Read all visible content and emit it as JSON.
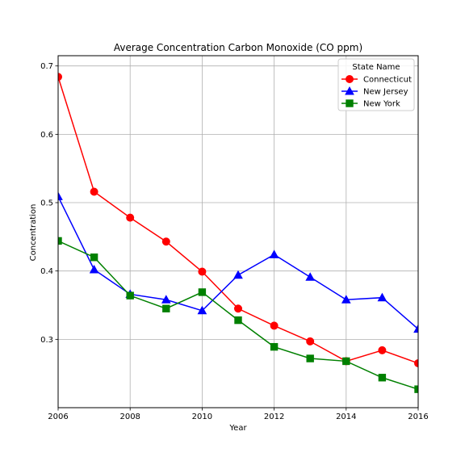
{
  "chart_data": {
    "type": "line",
    "title": "Average Concentration Carbon Monoxide (CO ppm)",
    "xlabel": "Year",
    "ylabel": "Concentration",
    "xlim": [
      2006,
      2016
    ],
    "ylim": [
      0.2,
      0.715
    ],
    "x_ticks": [
      "2006",
      "2008",
      "2010",
      "2012",
      "2014",
      "2016"
    ],
    "y_ticks": [
      "0.3",
      "0.4",
      "0.5",
      "0.6",
      "0.7"
    ],
    "grid": true,
    "legend_title": "State Name",
    "legend_position": "top-right",
    "x": [
      2006,
      2007,
      2008,
      2009,
      2010,
      2011,
      2012,
      2013,
      2014,
      2015,
      2016
    ],
    "series": [
      {
        "name": "Connecticut",
        "color": "#ff0000",
        "marker": "circle",
        "values": [
          0.684,
          0.516,
          0.478,
          0.443,
          0.399,
          0.345,
          0.32,
          0.297,
          0.268,
          0.284,
          0.265
        ]
      },
      {
        "name": "New Jersey",
        "color": "#0000ff",
        "marker": "triangle",
        "values": [
          0.509,
          0.402,
          0.366,
          0.358,
          0.342,
          0.394,
          0.424,
          0.391,
          0.358,
          0.361,
          0.315
        ]
      },
      {
        "name": "New York",
        "color": "#008000",
        "marker": "square",
        "values": [
          0.444,
          0.42,
          0.364,
          0.345,
          0.369,
          0.328,
          0.289,
          0.272,
          0.268,
          0.244,
          0.227
        ]
      }
    ]
  }
}
